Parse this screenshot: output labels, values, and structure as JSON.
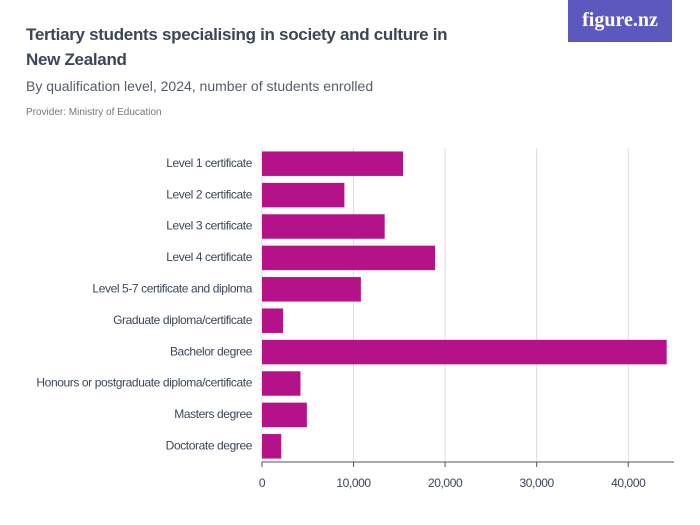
{
  "logo": "figure.nz",
  "chart_data": {
    "type": "bar",
    "orientation": "horizontal",
    "title": "Tertiary students specialising in society and culture in New Zealand",
    "subtitle": "By qualification level, 2024, number of students enrolled",
    "source": "Provider: Ministry of Education",
    "categories": [
      "Level 1 certificate",
      "Level 2 certificate",
      "Level 3 certificate",
      "Level 4 certificate",
      "Level 5-7 certificate and diploma",
      "Graduate diploma/certificate",
      "Bachelor degree",
      "Honours or postgraduate diploma/certificate",
      "Masters degree",
      "Doctorate degree"
    ],
    "values": [
      15400,
      9000,
      13400,
      18900,
      10800,
      2300,
      44200,
      4200,
      4900,
      2100
    ],
    "color": "#b5128a",
    "xlim": [
      0,
      45000
    ],
    "xticks": [
      0,
      {
        "value": 10000,
        "label": "10,000"
      },
      {
        "value": 20000,
        "label": "20,000"
      },
      {
        "value": 30000,
        "label": "30,000"
      },
      {
        "value": 40000,
        "label": "40,000"
      }
    ],
    "grid": true
  }
}
